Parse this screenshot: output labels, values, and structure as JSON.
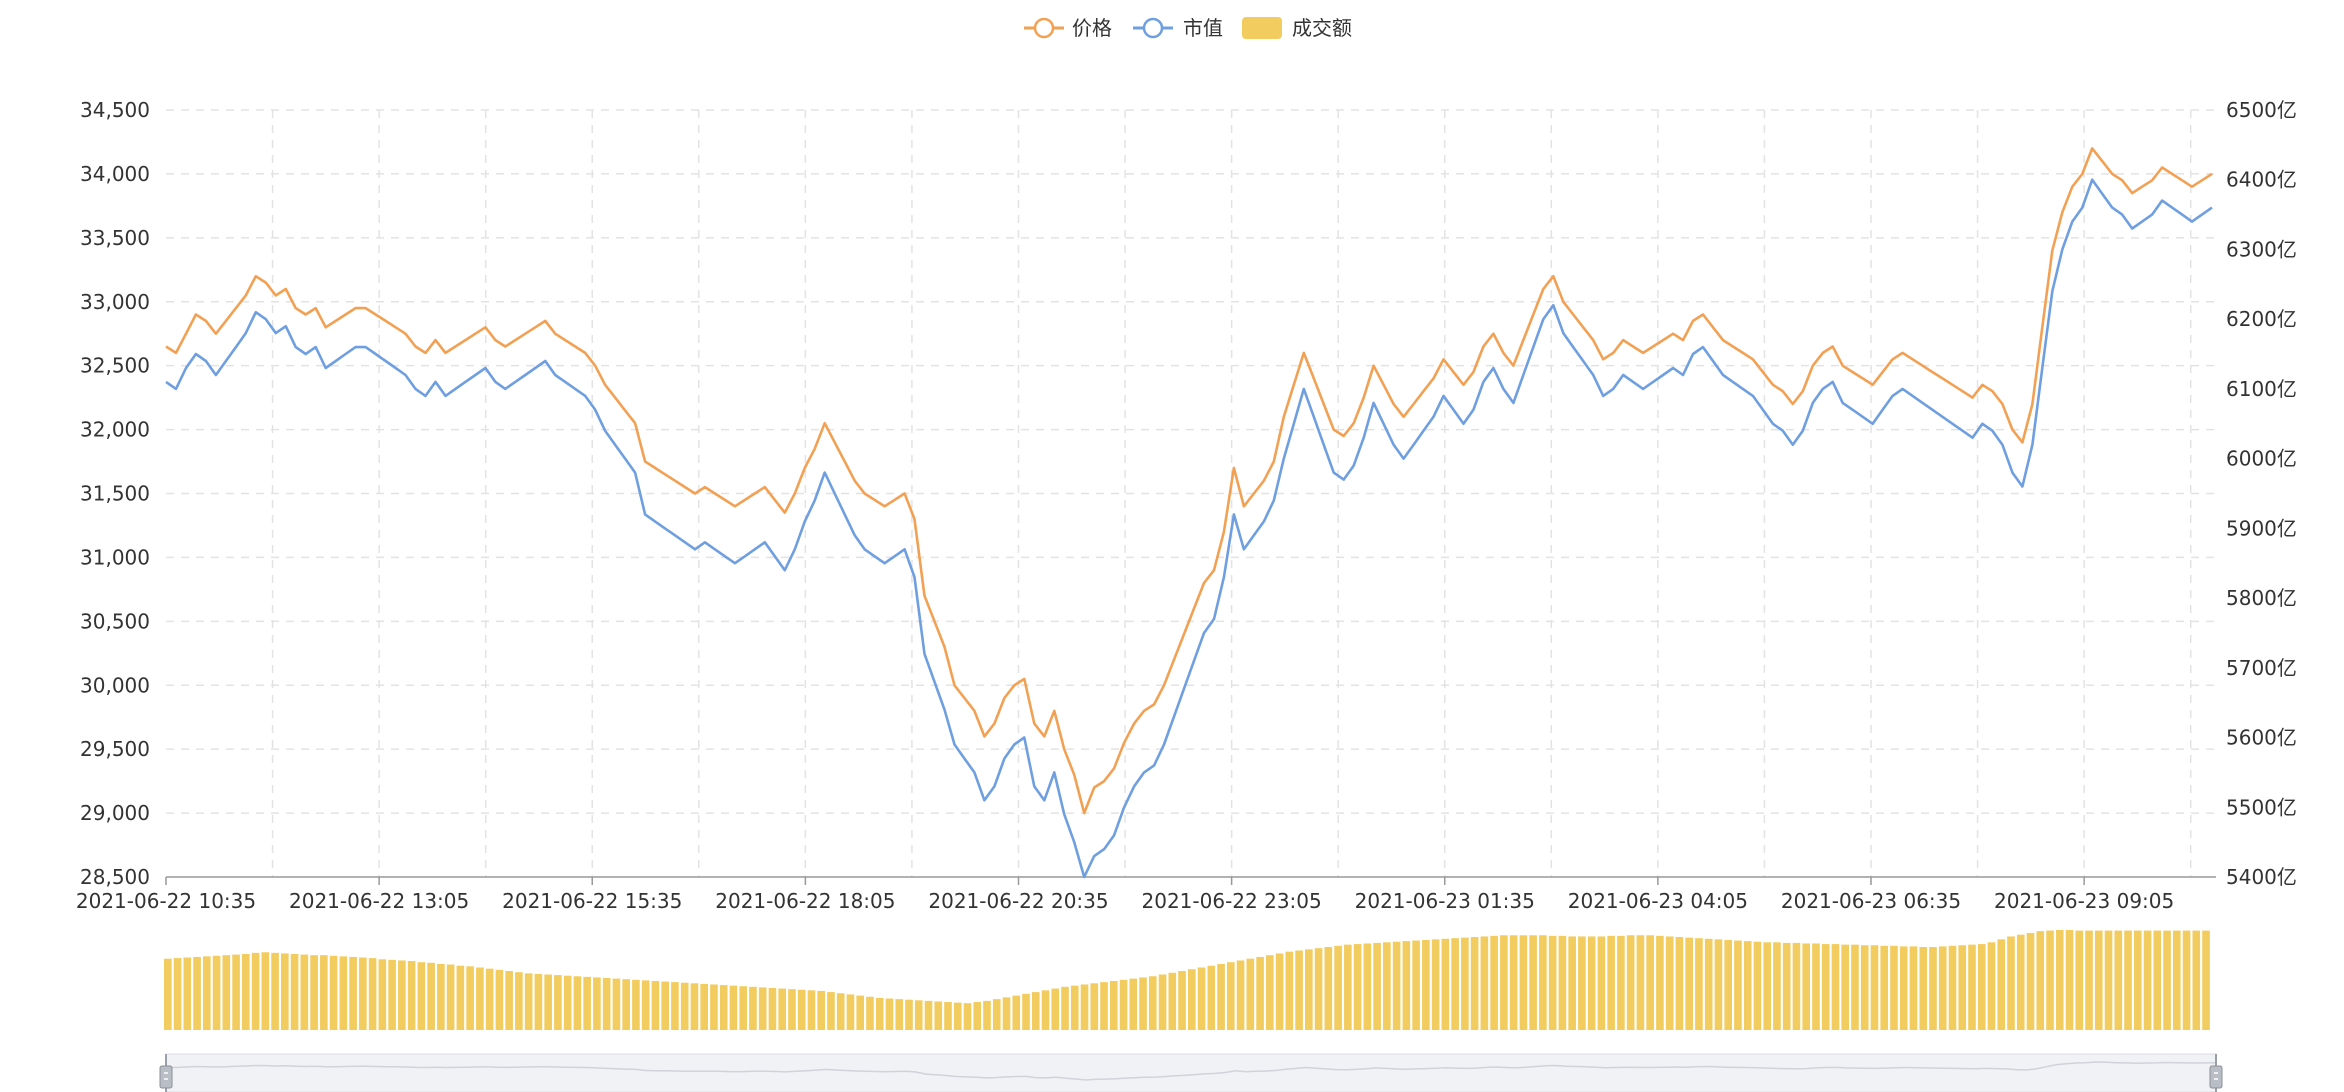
{
  "legend": {
    "price_label": "价格",
    "mcap_label": "市值",
    "volume_label": "成交额"
  },
  "colors": {
    "price": "#f2a154",
    "mcap": "#6f9fe0",
    "volume": "#f2cc5f",
    "grid": "#e3e3e3",
    "axis": "#999999"
  },
  "chart_data": {
    "type": "line",
    "x_ticks": [
      "2021-06-22 10:35",
      "2021-06-22 13:05",
      "2021-06-22 15:35",
      "2021-06-22 18:05",
      "2021-06-22 20:35",
      "2021-06-22 23:05",
      "2021-06-23 01:35",
      "2021-06-23 04:05",
      "2021-06-23 06:35",
      "2021-06-23 09:05"
    ],
    "y_left_ticks": [
      "28,500",
      "29,000",
      "29,500",
      "30,000",
      "30,500",
      "31,000",
      "31,500",
      "32,000",
      "32,500",
      "33,000",
      "33,500",
      "34,000",
      "34,500"
    ],
    "y_right_ticks": [
      "5400亿",
      "5500亿",
      "5600亿",
      "5700亿",
      "5800亿",
      "5900亿",
      "6000亿",
      "6100亿",
      "6200亿",
      "6300亿",
      "6400亿",
      "6500亿"
    ],
    "ylim_left": [
      28500,
      34500
    ],
    "ylim_right": [
      5400,
      6500
    ],
    "grid": true,
    "legend_position": "top-center",
    "series": [
      {
        "key": "price",
        "values": [
          32650,
          32600,
          32750,
          32900,
          32850,
          32750,
          32850,
          32950,
          33050,
          33200,
          33150,
          33050,
          33100,
          32950,
          32900,
          32950,
          32800,
          32850,
          32900,
          32950,
          32950,
          32900,
          32850,
          32800,
          32750,
          32650,
          32600,
          32700,
          32600,
          32650,
          32700,
          32750,
          32800,
          32700,
          32650,
          32700,
          32750,
          32800,
          32850,
          32750,
          32700,
          32650,
          32600,
          32500,
          32350,
          32250,
          32150,
          32050,
          31750,
          31700,
          31650,
          31600,
          31550,
          31500,
          31550,
          31500,
          31450,
          31400,
          31450,
          31500,
          31550,
          31450,
          31350,
          31500,
          31700,
          31850,
          32050,
          31900,
          31750,
          31600,
          31500,
          31450,
          31400,
          31450,
          31500,
          31300,
          30700,
          30500,
          30300,
          30000,
          29900,
          29800,
          29600,
          29700,
          29900,
          30000,
          30050,
          29700,
          29600,
          29800,
          29500,
          29300,
          29000,
          29200,
          29250,
          29350,
          29550,
          29700,
          29800,
          29850,
          30000,
          30200,
          30400,
          30600,
          30800,
          30900,
          31200,
          31700,
          31400,
          31500,
          31600,
          31750,
          32100,
          32350,
          32600,
          32400,
          32200,
          32000,
          31950,
          32050,
          32250,
          32500,
          32350,
          32200,
          32100,
          32200,
          32300,
          32400,
          32550,
          32450,
          32350,
          32450,
          32650,
          32750,
          32600,
          32500,
          32700,
          32900,
          33100,
          33200,
          33000,
          32900,
          32800,
          32700,
          32550,
          32600,
          32700,
          32650,
          32600,
          32650,
          32700,
          32750,
          32700,
          32850,
          32900,
          32800,
          32700,
          32650,
          32600,
          32550,
          32450,
          32350,
          32300,
          32200,
          32300,
          32500,
          32600,
          32650,
          32500,
          32450,
          32400,
          32350,
          32450,
          32550,
          32600,
          32550,
          32500,
          32450,
          32400,
          32350,
          32300,
          32250,
          32350,
          32300,
          32200,
          32000,
          31900,
          32200,
          32800,
          33400,
          33700,
          33900,
          34000,
          34200,
          34100,
          34000,
          33950,
          33850,
          33900,
          33950,
          34050,
          34000,
          33950,
          33900,
          33950,
          34000
        ]
      },
      {
        "key": "mcap",
        "values": [
          6110,
          6100,
          6130,
          6150,
          6140,
          6120,
          6140,
          6160,
          6180,
          6210,
          6200,
          6180,
          6190,
          6160,
          6150,
          6160,
          6130,
          6140,
          6150,
          6160,
          6160,
          6150,
          6140,
          6130,
          6120,
          6100,
          6090,
          6110,
          6090,
          6100,
          6110,
          6120,
          6130,
          6110,
          6100,
          6110,
          6120,
          6130,
          6140,
          6120,
          6110,
          6100,
          6090,
          6070,
          6040,
          6020,
          6000,
          5980,
          5920,
          5910,
          5900,
          5890,
          5880,
          5870,
          5880,
          5870,
          5860,
          5850,
          5860,
          5870,
          5880,
          5860,
          5840,
          5870,
          5910,
          5940,
          5980,
          5950,
          5920,
          5890,
          5870,
          5860,
          5850,
          5860,
          5870,
          5830,
          5720,
          5680,
          5640,
          5590,
          5570,
          5550,
          5510,
          5530,
          5570,
          5590,
          5600,
          5530,
          5510,
          5550,
          5490,
          5450,
          5400,
          5430,
          5440,
          5460,
          5500,
          5530,
          5550,
          5560,
          5590,
          5630,
          5670,
          5710,
          5750,
          5770,
          5830,
          5920,
          5870,
          5890,
          5910,
          5940,
          6000,
          6050,
          6100,
          6060,
          6020,
          5980,
          5970,
          5990,
          6030,
          6080,
          6050,
          6020,
          6000,
          6020,
          6040,
          6060,
          6090,
          6070,
          6050,
          6070,
          6110,
          6130,
          6100,
          6080,
          6120,
          6160,
          6200,
          6220,
          6180,
          6160,
          6140,
          6120,
          6090,
          6100,
          6120,
          6110,
          6100,
          6110,
          6120,
          6130,
          6120,
          6150,
          6160,
          6140,
          6120,
          6110,
          6100,
          6090,
          6070,
          6050,
          6040,
          6020,
          6040,
          6080,
          6100,
          6110,
          6080,
          6070,
          6060,
          6050,
          6070,
          6090,
          6100,
          6090,
          6080,
          6070,
          6060,
          6050,
          6040,
          6030,
          6050,
          6040,
          6020,
          5980,
          5960,
          6020,
          6130,
          6240,
          6300,
          6340,
          6360,
          6400,
          6380,
          6360,
          6350,
          6330,
          6340,
          6350,
          6370,
          6360,
          6350,
          6340,
          6350,
          6360
        ]
      }
    ],
    "volume": {
      "key": "volume",
      "values": [
        6020,
        6030,
        6040,
        6050,
        6060,
        6070,
        6080,
        6090,
        6100,
        6120,
        6130,
        6120,
        6110,
        6100,
        6090,
        6080,
        6080,
        6070,
        6060,
        6050,
        6040,
        6030,
        6010,
        6000,
        5990,
        5980,
        5960,
        5950,
        5930,
        5920,
        5900,
        5890,
        5870,
        5850,
        5830,
        5810,
        5790,
        5770,
        5760,
        5750,
        5740,
        5730,
        5720,
        5710,
        5700,
        5690,
        5680,
        5670,
        5660,
        5650,
        5640,
        5630,
        5620,
        5610,
        5600,
        5590,
        5580,
        5570,
        5560,
        5550,
        5540,
        5530,
        5520,
        5510,
        5500,
        5490,
        5480,
        5470,
        5450,
        5430,
        5410,
        5390,
        5370,
        5350,
        5340,
        5330,
        5320,
        5310,
        5300,
        5290,
        5280,
        5270,
        5260,
        5280,
        5300,
        5330,
        5360,
        5390,
        5420,
        5450,
        5480,
        5510,
        5540,
        5560,
        5580,
        5600,
        5620,
        5640,
        5660,
        5680,
        5700,
        5720,
        5750,
        5780,
        5810,
        5840,
        5870,
        5900,
        5930,
        5960,
        5990,
        6020,
        6050,
        6080,
        6110,
        6140,
        6160,
        6180,
        6200,
        6220,
        6240,
        6260,
        6270,
        6280,
        6290,
        6300,
        6310,
        6320,
        6330,
        6340,
        6350,
        6360,
        6370,
        6380,
        6390,
        6400,
        6410,
        6420,
        6420,
        6420,
        6420,
        6420,
        6410,
        6410,
        6400,
        6400,
        6400,
        6400,
        6410,
        6410,
        6420,
        6420,
        6420,
        6410,
        6400,
        6390,
        6380,
        6370,
        6360,
        6350,
        6340,
        6330,
        6320,
        6310,
        6300,
        6300,
        6290,
        6290,
        6280,
        6280,
        6270,
        6270,
        6260,
        6260,
        6250,
        6250,
        6240,
        6240,
        6230,
        6230,
        6220,
        6220,
        6230,
        6240,
        6250,
        6260,
        6270,
        6300,
        6350,
        6400,
        6430,
        6460,
        6490,
        6500,
        6510,
        6510,
        6500,
        6500,
        6500,
        6500,
        6500,
        6500,
        6500,
        6500,
        6500,
        6500,
        6500,
        6500,
        6500,
        6500
      ]
    }
  }
}
